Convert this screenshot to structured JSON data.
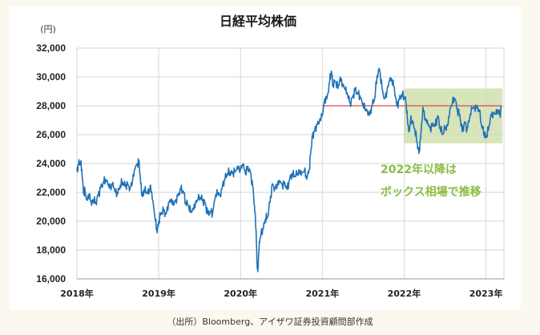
{
  "chart_data": {
    "type": "line",
    "title": "日経平均株価",
    "ylabel": "(円)",
    "ylim": [
      16000,
      32000
    ],
    "yticks": [
      "32,000",
      "30,000",
      "28,000",
      "26,000",
      "24,000",
      "22,000",
      "20,000",
      "18,000",
      "16,000"
    ],
    "ytick_values": [
      32000,
      30000,
      28000,
      26000,
      24000,
      22000,
      20000,
      18000,
      16000
    ],
    "xlim": [
      2018.0,
      2023.22
    ],
    "xticks": [
      "2018年",
      "2019年",
      "2020年",
      "2021年",
      "2022年",
      "2023年"
    ],
    "xtick_values": [
      2018,
      2019,
      2020,
      2021,
      2022,
      2023
    ],
    "grid": true,
    "series": [
      {
        "color": "#1f72b8",
        "points": [
          [
            2018.0,
            23500
          ],
          [
            2018.02,
            23900
          ],
          [
            2018.04,
            24100
          ],
          [
            2018.06,
            23600
          ],
          [
            2018.08,
            21900
          ],
          [
            2018.1,
            22100
          ],
          [
            2018.12,
            21500
          ],
          [
            2018.15,
            21900
          ],
          [
            2018.18,
            21100
          ],
          [
            2018.2,
            21500
          ],
          [
            2018.23,
            21300
          ],
          [
            2018.26,
            21800
          ],
          [
            2018.29,
            22300
          ],
          [
            2018.32,
            22700
          ],
          [
            2018.35,
            22900
          ],
          [
            2018.38,
            22500
          ],
          [
            2018.41,
            22300
          ],
          [
            2018.44,
            22700
          ],
          [
            2018.47,
            22000
          ],
          [
            2018.5,
            21900
          ],
          [
            2018.53,
            22500
          ],
          [
            2018.56,
            22700
          ],
          [
            2018.59,
            22400
          ],
          [
            2018.62,
            22600
          ],
          [
            2018.65,
            22300
          ],
          [
            2018.68,
            22800
          ],
          [
            2018.71,
            23600
          ],
          [
            2018.74,
            24000
          ],
          [
            2018.76,
            24200
          ],
          [
            2018.78,
            22600
          ],
          [
            2018.8,
            21700
          ],
          [
            2018.82,
            22200
          ],
          [
            2018.85,
            22000
          ],
          [
            2018.88,
            21900
          ],
          [
            2018.9,
            22500
          ],
          [
            2018.93,
            21400
          ],
          [
            2018.96,
            20000
          ],
          [
            2018.98,
            19200
          ],
          [
            2019.0,
            20000
          ],
          [
            2019.03,
            20600
          ],
          [
            2019.06,
            20700
          ],
          [
            2019.09,
            20500
          ],
          [
            2019.12,
            21300
          ],
          [
            2019.15,
            21400
          ],
          [
            2019.18,
            21100
          ],
          [
            2019.21,
            21500
          ],
          [
            2019.24,
            21900
          ],
          [
            2019.27,
            22200
          ],
          [
            2019.3,
            22100
          ],
          [
            2019.33,
            21300
          ],
          [
            2019.36,
            21100
          ],
          [
            2019.39,
            20600
          ],
          [
            2019.42,
            20900
          ],
          [
            2019.45,
            21300
          ],
          [
            2019.48,
            21500
          ],
          [
            2019.51,
            21600
          ],
          [
            2019.54,
            21500
          ],
          [
            2019.57,
            21200
          ],
          [
            2019.6,
            20500
          ],
          [
            2019.63,
            20700
          ],
          [
            2019.66,
            20600
          ],
          [
            2019.69,
            21600
          ],
          [
            2019.72,
            22000
          ],
          [
            2019.75,
            21800
          ],
          [
            2019.78,
            22500
          ],
          [
            2019.81,
            22900
          ],
          [
            2019.84,
            23300
          ],
          [
            2019.87,
            23400
          ],
          [
            2019.9,
            23300
          ],
          [
            2019.93,
            23400
          ],
          [
            2019.96,
            23800
          ],
          [
            2020.0,
            23600
          ],
          [
            2020.03,
            23900
          ],
          [
            2020.06,
            23300
          ],
          [
            2020.09,
            23800
          ],
          [
            2020.12,
            23400
          ],
          [
            2020.15,
            22400
          ],
          [
            2020.17,
            21100
          ],
          [
            2020.19,
            19400
          ],
          [
            2020.2,
            17200
          ],
          [
            2020.21,
            16500
          ],
          [
            2020.23,
            18600
          ],
          [
            2020.25,
            19100
          ],
          [
            2020.28,
            19500
          ],
          [
            2020.3,
            20100
          ],
          [
            2020.33,
            20300
          ],
          [
            2020.36,
            21300
          ],
          [
            2020.39,
            22600
          ],
          [
            2020.42,
            22300
          ],
          [
            2020.45,
            22500
          ],
          [
            2020.48,
            22700
          ],
          [
            2020.51,
            22500
          ],
          [
            2020.54,
            22700
          ],
          [
            2020.57,
            22200
          ],
          [
            2020.6,
            22900
          ],
          [
            2020.63,
            23300
          ],
          [
            2020.66,
            23100
          ],
          [
            2020.69,
            23200
          ],
          [
            2020.72,
            23500
          ],
          [
            2020.75,
            23400
          ],
          [
            2020.78,
            23500
          ],
          [
            2020.81,
            22900
          ],
          [
            2020.84,
            23600
          ],
          [
            2020.86,
            24900
          ],
          [
            2020.88,
            25900
          ],
          [
            2020.9,
            26200
          ],
          [
            2020.93,
            26700
          ],
          [
            2020.96,
            26800
          ],
          [
            2021.0,
            27300
          ],
          [
            2021.03,
            28500
          ],
          [
            2021.06,
            28600
          ],
          [
            2021.09,
            29700
          ],
          [
            2021.11,
            30400
          ],
          [
            2021.13,
            29400
          ],
          [
            2021.16,
            29700
          ],
          [
            2021.19,
            29200
          ],
          [
            2021.22,
            30000
          ],
          [
            2021.25,
            29500
          ],
          [
            2021.28,
            29100
          ],
          [
            2021.31,
            28700
          ],
          [
            2021.34,
            28200
          ],
          [
            2021.37,
            28600
          ],
          [
            2021.4,
            29100
          ],
          [
            2021.43,
            28900
          ],
          [
            2021.46,
            28700
          ],
          [
            2021.49,
            28100
          ],
          [
            2021.52,
            27800
          ],
          [
            2021.55,
            27700
          ],
          [
            2021.58,
            27400
          ],
          [
            2021.61,
            28000
          ],
          [
            2021.64,
            28500
          ],
          [
            2021.67,
            30100
          ],
          [
            2021.7,
            30500
          ],
          [
            2021.73,
            29200
          ],
          [
            2021.76,
            28500
          ],
          [
            2021.79,
            29000
          ],
          [
            2021.82,
            29700
          ],
          [
            2021.85,
            29800
          ],
          [
            2021.88,
            29300
          ],
          [
            2021.91,
            28000
          ],
          [
            2021.94,
            28400
          ],
          [
            2021.97,
            28800
          ],
          [
            2022.0,
            28600
          ],
          [
            2022.02,
            28300
          ],
          [
            2022.04,
            27100
          ],
          [
            2022.06,
            26200
          ],
          [
            2022.08,
            27100
          ],
          [
            2022.1,
            26800
          ],
          [
            2022.13,
            26400
          ],
          [
            2022.16,
            25400
          ],
          [
            2022.18,
            24700
          ],
          [
            2022.2,
            25700
          ],
          [
            2022.23,
            27900
          ],
          [
            2022.26,
            27000
          ],
          [
            2022.29,
            26700
          ],
          [
            2022.32,
            26400
          ],
          [
            2022.35,
            26800
          ],
          [
            2022.38,
            26600
          ],
          [
            2022.41,
            27300
          ],
          [
            2022.44,
            26500
          ],
          [
            2022.47,
            26000
          ],
          [
            2022.5,
            26400
          ],
          [
            2022.53,
            26600
          ],
          [
            2022.56,
            27800
          ],
          [
            2022.59,
            28200
          ],
          [
            2022.62,
            28500
          ],
          [
            2022.65,
            27700
          ],
          [
            2022.68,
            27400
          ],
          [
            2022.71,
            26200
          ],
          [
            2022.74,
            26900
          ],
          [
            2022.77,
            26400
          ],
          [
            2022.8,
            27100
          ],
          [
            2022.83,
            27800
          ],
          [
            2022.86,
            27900
          ],
          [
            2022.89,
            28000
          ],
          [
            2022.92,
            27600
          ],
          [
            2022.95,
            26500
          ],
          [
            2022.98,
            26100
          ],
          [
            2023.0,
            25800
          ],
          [
            2023.03,
            26300
          ],
          [
            2023.06,
            27400
          ],
          [
            2023.09,
            27500
          ],
          [
            2023.12,
            27400
          ],
          [
            2023.15,
            27600
          ],
          [
            2023.17,
            27400
          ],
          [
            2023.19,
            28000
          ]
        ]
      }
    ],
    "reference_line": {
      "y": 28000,
      "x_from": 2021.0,
      "x_to": 2023.19,
      "color": "#d94a4a"
    },
    "highlight_box": {
      "x_from": 2022.0,
      "x_to": 2023.2,
      "y_from": 25400,
      "y_to": 29200,
      "color": "#c9dca2"
    },
    "annotation": [
      "2022年以降は",
      "ボックス相場で推移"
    ],
    "annotation_color": "#8bbc3f",
    "source": "（出所）Bloomberg、アイザワ証券投資顧問部作成"
  }
}
